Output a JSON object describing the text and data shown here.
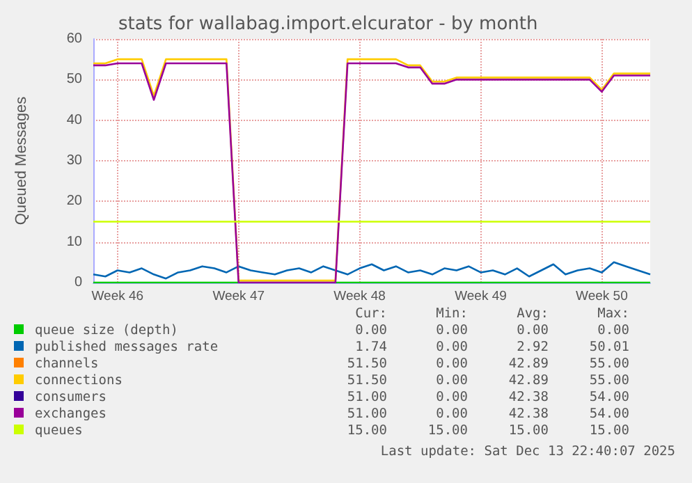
{
  "chart_data": {
    "type": "line",
    "title": "stats for wallabag.import.elcurator - by month",
    "ylabel": "Queued Messages",
    "categories": [
      null,
      null,
      "Week 46",
      null,
      null,
      null,
      null,
      null,
      null,
      null,
      null,
      null,
      "Week 47",
      null,
      null,
      null,
      null,
      null,
      null,
      null,
      null,
      null,
      "Week 48",
      null,
      null,
      null,
      null,
      null,
      null,
      null,
      null,
      null,
      "Week 49",
      null,
      null,
      null,
      null,
      null,
      null,
      null,
      null,
      null,
      "Week 50",
      null,
      null,
      null,
      null
    ],
    "ylim": [
      0,
      60
    ],
    "yticks": [
      0,
      10,
      20,
      30,
      40,
      50,
      60
    ],
    "grid": true,
    "legend": "bottom",
    "marker": "none",
    "line_style": "solid",
    "series": [
      {
        "name": "queue size (depth)",
        "color": "#00cc00",
        "values": [
          0,
          0,
          0,
          0,
          0,
          0,
          0,
          0,
          0,
          0,
          0,
          0,
          0,
          0,
          0,
          0,
          0,
          0,
          0,
          0,
          0,
          0,
          0,
          0,
          0,
          0,
          0,
          0,
          0,
          0,
          0,
          0,
          0,
          0,
          0,
          0,
          0,
          0,
          0,
          0,
          0,
          0,
          0,
          0,
          0,
          0,
          0
        ]
      },
      {
        "name": "published messages rate",
        "color": "#0066b3",
        "values": [
          2,
          1.5,
          3,
          2.5,
          3.5,
          2,
          1,
          2.5,
          3,
          4,
          3.5,
          2.5,
          4,
          3,
          2.5,
          2,
          3,
          3.5,
          2.5,
          4,
          3,
          2,
          3.5,
          4.5,
          3,
          4,
          2.5,
          3,
          2,
          3.5,
          3,
          4,
          2.5,
          3,
          2,
          3.5,
          1.5,
          3,
          4.5,
          2,
          3,
          3.5,
          2.5,
          5,
          4,
          3,
          2
        ]
      },
      {
        "name": "channels",
        "color": "#ff8000",
        "values": [
          null,
          null,
          null,
          null,
          null,
          null,
          null,
          null,
          null,
          null,
          null,
          null,
          null,
          null,
          null,
          null,
          null,
          null,
          null,
          null,
          null,
          null,
          null,
          null,
          null,
          null,
          null,
          null,
          null,
          null,
          null,
          null,
          null,
          null,
          null,
          null,
          null,
          null,
          null,
          null,
          null,
          null,
          null,
          null,
          null,
          null,
          null
        ]
      },
      {
        "name": "connections",
        "color": "#ffcc00",
        "values": [
          54,
          54,
          55,
          55,
          55,
          46,
          55,
          55,
          55,
          55,
          55,
          55,
          0.5,
          0.5,
          0.5,
          0.5,
          0.5,
          0.5,
          0.5,
          0.5,
          0.5,
          55,
          55,
          55,
          55,
          55,
          53.5,
          53.5,
          49.5,
          49.5,
          50.5,
          50.5,
          50.5,
          50.5,
          50.5,
          50.5,
          50.5,
          50.5,
          50.5,
          50.5,
          50.5,
          50.5,
          47.5,
          51.5,
          51.5,
          51.5,
          51.5
        ]
      },
      {
        "name": "consumers",
        "color": "#330099",
        "values": [
          null,
          null,
          null,
          null,
          null,
          null,
          null,
          null,
          null,
          null,
          null,
          null,
          null,
          null,
          null,
          null,
          null,
          null,
          null,
          null,
          null,
          null,
          null,
          null,
          null,
          null,
          null,
          null,
          null,
          null,
          null,
          null,
          null,
          null,
          null,
          null,
          null,
          null,
          null,
          null,
          null,
          null,
          null,
          null,
          null,
          null,
          null
        ]
      },
      {
        "name": "exchanges",
        "color": "#990099",
        "values": [
          53.5,
          53.5,
          54,
          54,
          54,
          45,
          54,
          54,
          54,
          54,
          54,
          54,
          0,
          0,
          0,
          0,
          0,
          0,
          0,
          0,
          0,
          54,
          54,
          54,
          54,
          54,
          53,
          53,
          49,
          49,
          50,
          50,
          50,
          50,
          50,
          50,
          50,
          50,
          50,
          50,
          50,
          50,
          47,
          51,
          51,
          51,
          51
        ]
      },
      {
        "name": "queues",
        "color": "#ccff00",
        "values": [
          15,
          15,
          15,
          15,
          15,
          15,
          15,
          15,
          15,
          15,
          15,
          15,
          15,
          15,
          15,
          15,
          15,
          15,
          15,
          15,
          15,
          15,
          15,
          15,
          15,
          15,
          15,
          15,
          15,
          15,
          15,
          15,
          15,
          15,
          15,
          15,
          15,
          15,
          15,
          15,
          15,
          15,
          15,
          15,
          15,
          15,
          15
        ]
      }
    ],
    "annotations": [
      "Cur:",
      "Min:",
      "Avg:",
      "Max:",
      "0.00",
      "0.00",
      "0.00",
      "0.00",
      "1.74",
      "0.00",
      "2.92",
      "50.01",
      "51.50",
      "0.00",
      "42.89",
      "55.00",
      "51.50",
      "0.00",
      "42.89",
      "55.00",
      "51.00",
      "0.00",
      "42.38",
      "54.00",
      "51.00",
      "0.00",
      "42.38",
      "54.00",
      "15.00",
      "15.00",
      "15.00",
      "15.00",
      "Last update: Sat Dec 13 22:40:07 2025"
    ]
  }
}
